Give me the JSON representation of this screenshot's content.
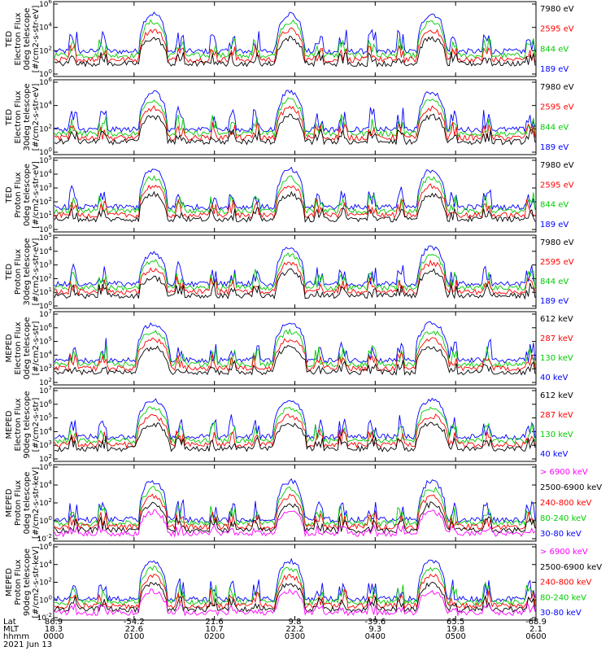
{
  "chart_data": {
    "type": "line",
    "date": "2021 Jun 13",
    "bottom_axis": {
      "row_labels": [
        "Lat",
        "MLT",
        "hhmm"
      ],
      "ticks": [
        {
          "lat": "86.9",
          "mlt": "18.3",
          "hhmm": "0000"
        },
        {
          "lat": "-54.2",
          "mlt": "22.6",
          "hhmm": "0100"
        },
        {
          "lat": "21.6",
          "mlt": "10.7",
          "hhmm": "0200"
        },
        {
          "lat": "9.8",
          "mlt": "22.2",
          "hhmm": "0300"
        },
        {
          "lat": "-39.6",
          "mlt": "9.3",
          "hhmm": "0400"
        },
        {
          "lat": "65.5",
          "mlt": "19.8",
          "hhmm": "0500"
        },
        {
          "lat": "-68.9",
          "mlt": "2.1",
          "hhmm": "0600"
        }
      ]
    },
    "panels": [
      {
        "instrument": "TED",
        "quantity": "Electron Flux",
        "telescope": "0deg telescope",
        "units": "[#/cm2-s-str-eV]",
        "yticks": [
          "10^6",
          "10^4",
          "10^2",
          "10^0"
        ],
        "ylog": [
          0,
          6
        ],
        "legend": [
          {
            "label": "7980 eV",
            "color": "#000000"
          },
          {
            "label": "2595 eV",
            "color": "#ff0000"
          },
          {
            "label": "844 eV",
            "color": "#00cc00"
          },
          {
            "label": "189 eV",
            "color": "#0000ff"
          }
        ]
      },
      {
        "instrument": "TED",
        "quantity": "Electron Flux",
        "telescope": "30deg telescope",
        "units": "[#/cm2-s-str-eV]",
        "yticks": [
          "10^6",
          "10^4",
          "10^2",
          "10^0"
        ],
        "ylog": [
          0,
          6
        ],
        "legend": [
          {
            "label": "7980 eV",
            "color": "#000000"
          },
          {
            "label": "2595 eV",
            "color": "#ff0000"
          },
          {
            "label": "844 eV",
            "color": "#00cc00"
          },
          {
            "label": "189 eV",
            "color": "#0000ff"
          }
        ]
      },
      {
        "instrument": "TED",
        "quantity": "Proton Flux",
        "telescope": "0deg telescope",
        "units": "[#/cm2-s-str-eV]",
        "yticks": [
          "10^5",
          "10^4",
          "10^3",
          "10^2",
          "10^1",
          "10^0"
        ],
        "ylog": [
          0,
          5
        ],
        "legend": [
          {
            "label": "7980 eV",
            "color": "#000000"
          },
          {
            "label": "2595 eV",
            "color": "#ff0000"
          },
          {
            "label": "844 eV",
            "color": "#00cc00"
          },
          {
            "label": "189 eV",
            "color": "#0000ff"
          }
        ]
      },
      {
        "instrument": "TED",
        "quantity": "Proton Flux",
        "telescope": "30deg telescope",
        "units": "[#/cm2-s-str-eV]",
        "yticks": [
          "10^5",
          "10^4",
          "10^3",
          "10^2",
          "10^1",
          "10^0"
        ],
        "ylog": [
          0,
          5
        ],
        "legend": [
          {
            "label": "7980 eV",
            "color": "#000000"
          },
          {
            "label": "2595 eV",
            "color": "#ff0000"
          },
          {
            "label": "844 eV",
            "color": "#00cc00"
          },
          {
            "label": "189 eV",
            "color": "#0000ff"
          }
        ]
      },
      {
        "instrument": "MEPED",
        "quantity": "Electron Flux",
        "telescope": "0deg telescope",
        "units": "[#/cm2-s-str]",
        "yticks": [
          "10^7",
          "10^6",
          "10^5",
          "10^4",
          "10^3",
          "10^2"
        ],
        "ylog": [
          2,
          7
        ],
        "legend": [
          {
            "label": "612 keV",
            "color": "#000000"
          },
          {
            "label": "287 keV",
            "color": "#ff0000"
          },
          {
            "label": "130 keV",
            "color": "#00cc00"
          },
          {
            "label": "40 keV",
            "color": "#0000ff"
          }
        ]
      },
      {
        "instrument": "MEPED",
        "quantity": "Electron Flux",
        "telescope": "90deg telescope",
        "units": "[#/cm2-s-str]",
        "yticks": [
          "10^7",
          "10^6",
          "10^5",
          "10^4",
          "10^3",
          "10^2"
        ],
        "ylog": [
          2,
          7
        ],
        "legend": [
          {
            "label": "612 keV",
            "color": "#000000"
          },
          {
            "label": "287 keV",
            "color": "#ff0000"
          },
          {
            "label": "130 keV",
            "color": "#00cc00"
          },
          {
            "label": "40 keV",
            "color": "#0000ff"
          }
        ]
      },
      {
        "instrument": "MEPED",
        "quantity": "Proton Flux",
        "telescope": "0deg telescope",
        "units": "[#/cm2-s-str-keV]",
        "yticks": [
          "10^6",
          "10^4",
          "10^2",
          "10^0",
          "10^-2"
        ],
        "ylog": [
          -2,
          6
        ],
        "legend": [
          {
            "label": "> 6900 keV",
            "color": "#ff00ff"
          },
          {
            "label": "2500-6900 keV",
            "color": "#000000"
          },
          {
            "label": "240-800 keV",
            "color": "#ff0000"
          },
          {
            "label": "80-240 keV",
            "color": "#00cc00"
          },
          {
            "label": "30-80 keV",
            "color": "#0000ff"
          }
        ]
      },
      {
        "instrument": "MEPED",
        "quantity": "Proton Flux",
        "telescope": "90deg telescope",
        "units": "[#/cm2-s-str-keV]",
        "yticks": [
          "10^6",
          "10^4",
          "10^2",
          "10^0",
          "10^-2"
        ],
        "ylog": [
          -2,
          6
        ],
        "legend": [
          {
            "label": "> 6900 keV",
            "color": "#ff00ff"
          },
          {
            "label": "2500-6900 keV",
            "color": "#000000"
          },
          {
            "label": "240-800 keV",
            "color": "#ff0000"
          },
          {
            "label": "80-240 keV",
            "color": "#00cc00"
          },
          {
            "label": "30-80 keV",
            "color": "#0000ff"
          }
        ]
      }
    ]
  }
}
